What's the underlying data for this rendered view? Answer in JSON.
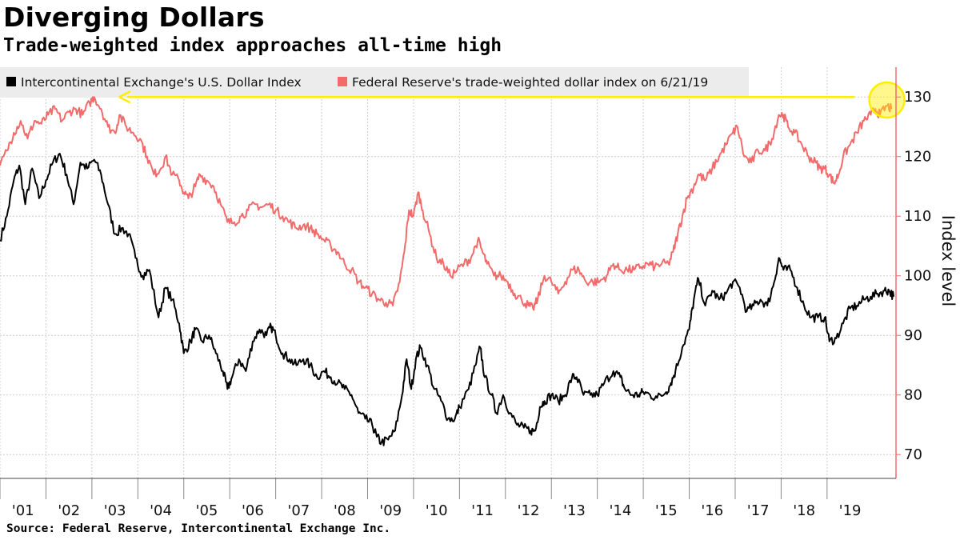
{
  "title": "Diverging Dollars",
  "subtitle": "Trade-weighted index approaches all-time high",
  "source": "Source: Federal Reserve, Intercontinental Exchange Inc.",
  "colors": {
    "dxy": "#000000",
    "fed": "#f36a6a",
    "axis": "#f36a6a",
    "grid": "#cfcfcf",
    "highlight": "#ffee00"
  },
  "chart_data": {
    "type": "line",
    "title": "Diverging Dollars",
    "subtitle": "Trade-weighted index approaches all-time high",
    "ylabel": "Index level",
    "ylim": [
      66,
      135
    ],
    "yticks": [
      70,
      80,
      90,
      100,
      110,
      120,
      130
    ],
    "x_range": [
      2000.0,
      2019.5
    ],
    "x_ticks": [
      "'01",
      "'02",
      "'03",
      "'04",
      "'05",
      "'06",
      "'07",
      "'08",
      "'09",
      "'10",
      "'11",
      "'12",
      "'13",
      "'14",
      "'15",
      "'16",
      "'17",
      "'18",
      "'19"
    ],
    "grid": true,
    "legend_position": "top-left",
    "annotations": [
      {
        "type": "arrow",
        "from_date": 2018.6,
        "to_date": 2002.0,
        "value": 130,
        "color": "#ffee00"
      },
      {
        "type": "circle",
        "date": 2019.3,
        "value": 129.5,
        "color": "#ffee00"
      }
    ],
    "series": [
      {
        "name": "Intercontinental Exchange's U.S. Dollar Index",
        "color": "#000000",
        "points": [
          [
            2000.0,
            106
          ],
          [
            2000.15,
            110
          ],
          [
            2000.3,
            116
          ],
          [
            2000.42,
            118.5
          ],
          [
            2000.55,
            112
          ],
          [
            2000.7,
            118
          ],
          [
            2000.85,
            113
          ],
          [
            2001.0,
            116
          ],
          [
            2001.15,
            119
          ],
          [
            2001.3,
            120.5
          ],
          [
            2001.45,
            117
          ],
          [
            2001.6,
            112
          ],
          [
            2001.75,
            119
          ],
          [
            2001.9,
            118
          ],
          [
            2002.05,
            119.5
          ],
          [
            2002.2,
            117
          ],
          [
            2002.35,
            112
          ],
          [
            2002.5,
            107
          ],
          [
            2002.65,
            108
          ],
          [
            2002.8,
            107
          ],
          [
            2002.95,
            103
          ],
          [
            2003.1,
            100
          ],
          [
            2003.25,
            101
          ],
          [
            2003.45,
            93
          ],
          [
            2003.6,
            98
          ],
          [
            2003.75,
            96
          ],
          [
            2003.9,
            92
          ],
          [
            2004.0,
            87
          ],
          [
            2004.15,
            89
          ],
          [
            2004.25,
            91
          ],
          [
            2004.4,
            89
          ],
          [
            2004.55,
            90
          ],
          [
            2004.7,
            87
          ],
          [
            2004.85,
            84
          ],
          [
            2004.95,
            81
          ],
          [
            2005.05,
            83
          ],
          [
            2005.2,
            86
          ],
          [
            2005.35,
            84
          ],
          [
            2005.5,
            89
          ],
          [
            2005.65,
            91
          ],
          [
            2005.8,
            90
          ],
          [
            2005.9,
            91.5
          ],
          [
            2006.0,
            90
          ],
          [
            2006.15,
            87
          ],
          [
            2006.3,
            86
          ],
          [
            2006.45,
            85
          ],
          [
            2006.6,
            86
          ],
          [
            2006.75,
            85
          ],
          [
            2006.9,
            83
          ],
          [
            2007.05,
            84
          ],
          [
            2007.2,
            83
          ],
          [
            2007.35,
            82
          ],
          [
            2007.5,
            81
          ],
          [
            2007.65,
            80
          ],
          [
            2007.8,
            77
          ],
          [
            2007.95,
            76
          ],
          [
            2008.1,
            75
          ],
          [
            2008.2,
            73
          ],
          [
            2008.3,
            72
          ],
          [
            2008.45,
            72.5
          ],
          [
            2008.6,
            74
          ],
          [
            2008.75,
            80
          ],
          [
            2008.85,
            86
          ],
          [
            2008.95,
            81
          ],
          [
            2009.05,
            86
          ],
          [
            2009.15,
            88
          ],
          [
            2009.3,
            85
          ],
          [
            2009.45,
            81
          ],
          [
            2009.6,
            79
          ],
          [
            2009.75,
            76
          ],
          [
            2009.9,
            76
          ],
          [
            2010.0,
            78
          ],
          [
            2010.2,
            81
          ],
          [
            2010.35,
            85
          ],
          [
            2010.45,
            88
          ],
          [
            2010.55,
            83
          ],
          [
            2010.7,
            80
          ],
          [
            2010.8,
            77
          ],
          [
            2010.95,
            80
          ],
          [
            2011.1,
            77
          ],
          [
            2011.25,
            75
          ],
          [
            2011.4,
            74.5
          ],
          [
            2011.55,
            74
          ],
          [
            2011.65,
            74
          ],
          [
            2011.75,
            78
          ],
          [
            2011.85,
            79
          ],
          [
            2012.0,
            80
          ],
          [
            2012.15,
            79
          ],
          [
            2012.3,
            80
          ],
          [
            2012.45,
            83
          ],
          [
            2012.55,
            83
          ],
          [
            2012.7,
            80
          ],
          [
            2012.85,
            80
          ],
          [
            2013.0,
            80
          ],
          [
            2013.15,
            82
          ],
          [
            2013.35,
            84
          ],
          [
            2013.5,
            83
          ],
          [
            2013.6,
            81
          ],
          [
            2013.75,
            80
          ],
          [
            2013.9,
            80
          ],
          [
            2014.0,
            80.5
          ],
          [
            2014.15,
            80
          ],
          [
            2014.3,
            79.5
          ],
          [
            2014.5,
            80.5
          ],
          [
            2014.6,
            82
          ],
          [
            2014.7,
            84
          ],
          [
            2014.85,
            88
          ],
          [
            2015.0,
            91
          ],
          [
            2015.1,
            96
          ],
          [
            2015.2,
            99.5
          ],
          [
            2015.35,
            95
          ],
          [
            2015.5,
            97.5
          ],
          [
            2015.65,
            96
          ],
          [
            2015.8,
            97
          ],
          [
            2015.95,
            99
          ],
          [
            2016.1,
            98
          ],
          [
            2016.25,
            94
          ],
          [
            2016.4,
            95
          ],
          [
            2016.55,
            96
          ],
          [
            2016.7,
            95
          ],
          [
            2016.85,
            99
          ],
          [
            2016.95,
            103
          ],
          [
            2017.05,
            101
          ],
          [
            2017.2,
            101
          ],
          [
            2017.35,
            98
          ],
          [
            2017.5,
            95
          ],
          [
            2017.65,
            93
          ],
          [
            2017.8,
            93
          ],
          [
            2017.95,
            93
          ],
          [
            2018.05,
            89
          ],
          [
            2018.2,
            89.5
          ],
          [
            2018.35,
            92
          ],
          [
            2018.5,
            94.5
          ],
          [
            2018.65,
            95
          ],
          [
            2018.8,
            96
          ],
          [
            2018.95,
            96.5
          ],
          [
            2019.1,
            97
          ],
          [
            2019.25,
            97.5
          ],
          [
            2019.35,
            97.5
          ],
          [
            2019.45,
            96.5
          ]
        ]
      },
      {
        "name": "Federal Reserve's trade-weighted dollar index on 6/21/19",
        "color": "#f36a6a",
        "points": [
          [
            2000.0,
            118.5
          ],
          [
            2000.15,
            121
          ],
          [
            2000.3,
            124
          ],
          [
            2000.45,
            126
          ],
          [
            2000.6,
            123
          ],
          [
            2000.75,
            126
          ],
          [
            2000.9,
            125.5
          ],
          [
            2001.05,
            127
          ],
          [
            2001.2,
            128
          ],
          [
            2001.35,
            126
          ],
          [
            2001.5,
            127.5
          ],
          [
            2001.65,
            128
          ],
          [
            2001.8,
            127
          ],
          [
            2001.95,
            129
          ],
          [
            2002.05,
            130
          ],
          [
            2002.2,
            128
          ],
          [
            2002.35,
            125
          ],
          [
            2002.5,
            124
          ],
          [
            2002.6,
            127
          ],
          [
            2002.75,
            125
          ],
          [
            2002.9,
            124
          ],
          [
            2003.05,
            123
          ],
          [
            2003.2,
            120
          ],
          [
            2003.35,
            117
          ],
          [
            2003.5,
            118
          ],
          [
            2003.6,
            120
          ],
          [
            2003.75,
            117
          ],
          [
            2003.9,
            116
          ],
          [
            2004.0,
            114
          ],
          [
            2004.1,
            113
          ],
          [
            2004.25,
            115
          ],
          [
            2004.35,
            117
          ],
          [
            2004.5,
            116
          ],
          [
            2004.65,
            115
          ],
          [
            2004.8,
            112
          ],
          [
            2004.95,
            109
          ],
          [
            2005.1,
            109
          ],
          [
            2005.25,
            110
          ],
          [
            2005.4,
            111
          ],
          [
            2005.55,
            112
          ],
          [
            2005.7,
            111.5
          ],
          [
            2005.85,
            112
          ],
          [
            2006.0,
            111
          ],
          [
            2006.15,
            110
          ],
          [
            2006.3,
            109
          ],
          [
            2006.45,
            108
          ],
          [
            2006.6,
            108.5
          ],
          [
            2006.75,
            108
          ],
          [
            2006.9,
            107
          ],
          [
            2007.05,
            106
          ],
          [
            2007.2,
            105
          ],
          [
            2007.35,
            104
          ],
          [
            2007.5,
            102
          ],
          [
            2007.65,
            101
          ],
          [
            2007.8,
            99
          ],
          [
            2007.95,
            98
          ],
          [
            2008.1,
            97
          ],
          [
            2008.25,
            96
          ],
          [
            2008.4,
            95.5
          ],
          [
            2008.55,
            95
          ],
          [
            2008.7,
            99
          ],
          [
            2008.8,
            104
          ],
          [
            2008.9,
            111
          ],
          [
            2009.0,
            110
          ],
          [
            2009.1,
            114
          ],
          [
            2009.2,
            111
          ],
          [
            2009.35,
            107
          ],
          [
            2009.5,
            103
          ],
          [
            2009.65,
            102
          ],
          [
            2009.8,
            100
          ],
          [
            2009.95,
            101
          ],
          [
            2010.1,
            102
          ],
          [
            2010.25,
            103
          ],
          [
            2010.4,
            106
          ],
          [
            2010.5,
            104
          ],
          [
            2010.6,
            102
          ],
          [
            2010.75,
            100
          ],
          [
            2010.9,
            100
          ],
          [
            2011.05,
            99
          ],
          [
            2011.2,
            97
          ],
          [
            2011.35,
            96
          ],
          [
            2011.5,
            95
          ],
          [
            2011.6,
            94.5
          ],
          [
            2011.7,
            96
          ],
          [
            2011.85,
            100
          ],
          [
            2012.0,
            99
          ],
          [
            2012.15,
            97
          ],
          [
            2012.3,
            99
          ],
          [
            2012.45,
            101
          ],
          [
            2012.6,
            101
          ],
          [
            2012.75,
            99
          ],
          [
            2012.9,
            99
          ],
          [
            2013.05,
            99
          ],
          [
            2013.2,
            100
          ],
          [
            2013.35,
            102
          ],
          [
            2013.5,
            101
          ],
          [
            2013.65,
            101
          ],
          [
            2013.8,
            101
          ],
          [
            2013.95,
            101.5
          ],
          [
            2014.1,
            102
          ],
          [
            2014.25,
            101.5
          ],
          [
            2014.4,
            102
          ],
          [
            2014.55,
            102
          ],
          [
            2014.65,
            104
          ],
          [
            2014.75,
            107
          ],
          [
            2014.85,
            110
          ],
          [
            2014.95,
            113
          ],
          [
            2015.1,
            115
          ],
          [
            2015.2,
            117
          ],
          [
            2015.35,
            116
          ],
          [
            2015.5,
            118
          ],
          [
            2015.65,
            120
          ],
          [
            2015.8,
            122
          ],
          [
            2015.95,
            124
          ],
          [
            2016.05,
            125
          ],
          [
            2016.2,
            120
          ],
          [
            2016.35,
            119
          ],
          [
            2016.5,
            121
          ],
          [
            2016.65,
            121
          ],
          [
            2016.8,
            123
          ],
          [
            2016.95,
            127
          ],
          [
            2017.05,
            127
          ],
          [
            2017.15,
            125
          ],
          [
            2017.3,
            124
          ],
          [
            2017.45,
            122
          ],
          [
            2017.6,
            120
          ],
          [
            2017.75,
            119
          ],
          [
            2017.85,
            118
          ],
          [
            2017.95,
            118
          ],
          [
            2018.05,
            117
          ],
          [
            2018.15,
            115.5
          ],
          [
            2018.25,
            117
          ],
          [
            2018.35,
            120
          ],
          [
            2018.5,
            122
          ],
          [
            2018.65,
            124
          ],
          [
            2018.8,
            126
          ],
          [
            2018.95,
            127
          ],
          [
            2019.05,
            128
          ],
          [
            2019.15,
            127
          ],
          [
            2019.3,
            128.5
          ],
          [
            2019.4,
            128
          ]
        ]
      }
    ]
  }
}
